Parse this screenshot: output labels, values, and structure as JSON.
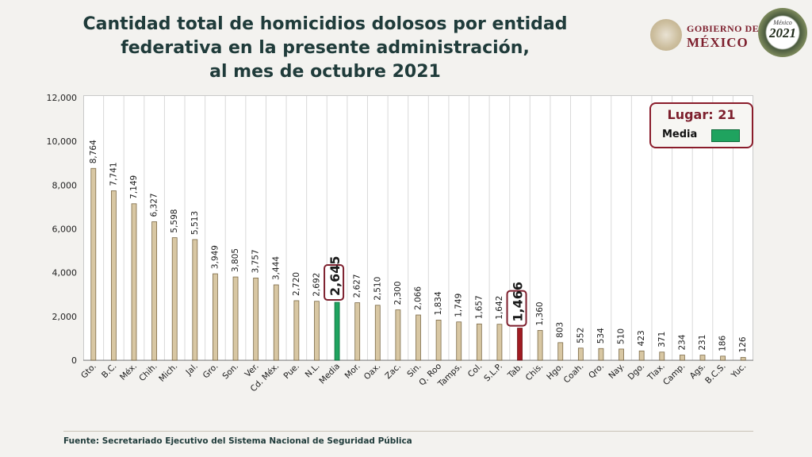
{
  "title": {
    "line1": "Cantidad total de homicidios dolosos por entidad",
    "line2": "federativa en la presente administración,",
    "line3": "al mes de octubre 2021"
  },
  "header": {
    "gobierno_line1": "GOBIERNO DE",
    "gobierno_line2": "MÉXICO",
    "badge_year": "2021",
    "badge_sub": "México"
  },
  "legend": {
    "lugar": "Lugar: 21",
    "media_label": "Media"
  },
  "footer": {
    "source": "Fuente: Secretariado Ejecutivo del Sistema Nacional de Seguridad Pública"
  },
  "colors": {
    "bar": "#d8c7a3",
    "bar_stroke": "#7c6a48",
    "media": "#1fa35f",
    "highlight": "#a01b22",
    "accent": "#7d1f2d"
  },
  "chart_data": {
    "type": "bar",
    "categories": [
      "Gto.",
      "B.C.",
      "Méx.",
      "Chih.",
      "Mich.",
      "Jal.",
      "Gro.",
      "Son.",
      "Ver.",
      "Cd. Méx.",
      "Pue.",
      "N.L.",
      "Media",
      "Mor.",
      "Oax.",
      "Zac.",
      "Sin.",
      "Q. Roo",
      "Tamps.",
      "Col.",
      "S.L.P.",
      "Tab.",
      "Chis.",
      "Hgo.",
      "Coah.",
      "Qro.",
      "Nay.",
      "Dgo.",
      "Tlax.",
      "Camp.",
      "Ags.",
      "B.C.S.",
      "Yuc."
    ],
    "values": [
      8764,
      7741,
      7149,
      6327,
      5598,
      5513,
      3949,
      3805,
      3757,
      3444,
      2720,
      2692,
      2645,
      2627,
      2510,
      2300,
      2066,
      1834,
      1749,
      1657,
      1642,
      1466,
      1360,
      803,
      552,
      534,
      510,
      423,
      371,
      234,
      231,
      186,
      126
    ],
    "value_labels": [
      "8,764",
      "7,741",
      "7,149",
      "6,327",
      "5,598",
      "5,513",
      "3,949",
      "3,805",
      "3,757",
      "3,444",
      "2,720",
      "2,692",
      "2,645",
      "2,627",
      "2,510",
      "2,300",
      "2,066",
      "1,834",
      "1,749",
      "1,657",
      "1,642",
      "1,466",
      "1,360",
      "803",
      "552",
      "534",
      "510",
      "423",
      "371",
      "234",
      "231",
      "186",
      "126"
    ],
    "yticks": [
      "0",
      "2,000",
      "4,000",
      "6,000",
      "8,000",
      "10,000",
      "12,000"
    ],
    "ylim": [
      0,
      12000
    ],
    "media_category": "Media",
    "highlight_category": "Tab.",
    "grid": "vertical"
  }
}
